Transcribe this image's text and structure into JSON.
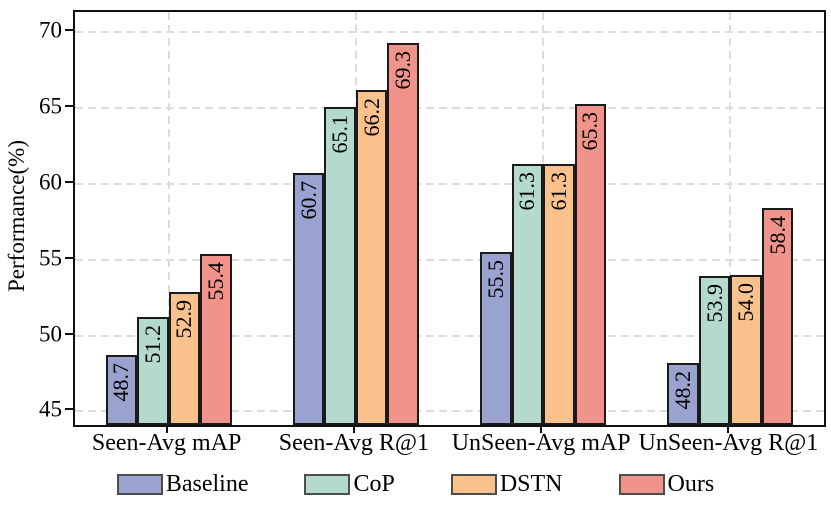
{
  "chart_data": {
    "type": "bar",
    "title": "",
    "xlabel": "",
    "ylabel": "Performance(%)",
    "categories": [
      "Seen-Avg mAP",
      "Seen-Avg R@1",
      "UnSeen-Avg mAP",
      "UnSeen-Avg R@1"
    ],
    "series": [
      {
        "name": "Baseline",
        "color": "#9aa2d0",
        "values": [
          48.7,
          60.7,
          55.5,
          48.2
        ],
        "labels": [
          "48.7",
          "60.7",
          "55.5",
          "48.2"
        ]
      },
      {
        "name": "CoP",
        "color": "#b4d9ce",
        "values": [
          51.2,
          65.1,
          61.3,
          53.9
        ],
        "labels": [
          "51.2",
          "65.1",
          "61.3",
          "53.9"
        ]
      },
      {
        "name": "DSTN",
        "color": "#f9c18b",
        "values": [
          52.9,
          66.2,
          61.3,
          54.0
        ],
        "labels": [
          "52.9",
          "66.2",
          "61.3",
          "54.0"
        ]
      },
      {
        "name": "Ours",
        "color": "#f0948b",
        "values": [
          55.4,
          69.3,
          65.3,
          58.4
        ],
        "labels": [
          "55.4",
          "69.3",
          "65.3",
          "58.4"
        ]
      }
    ],
    "ylim": [
      44.1,
      71.35
    ],
    "yticks": [
      45,
      50,
      55,
      60,
      65,
      70
    ],
    "grid": true,
    "grid_style": "dashed",
    "legend_position": "bottom",
    "bar_value_label_rotation_deg": 90
  },
  "colors": {
    "bar_edge": "#1a1a1a",
    "grid": "#dcdcdc",
    "spine": "#111111",
    "legend_edge": "#4d4d4d",
    "text": "#000000"
  }
}
